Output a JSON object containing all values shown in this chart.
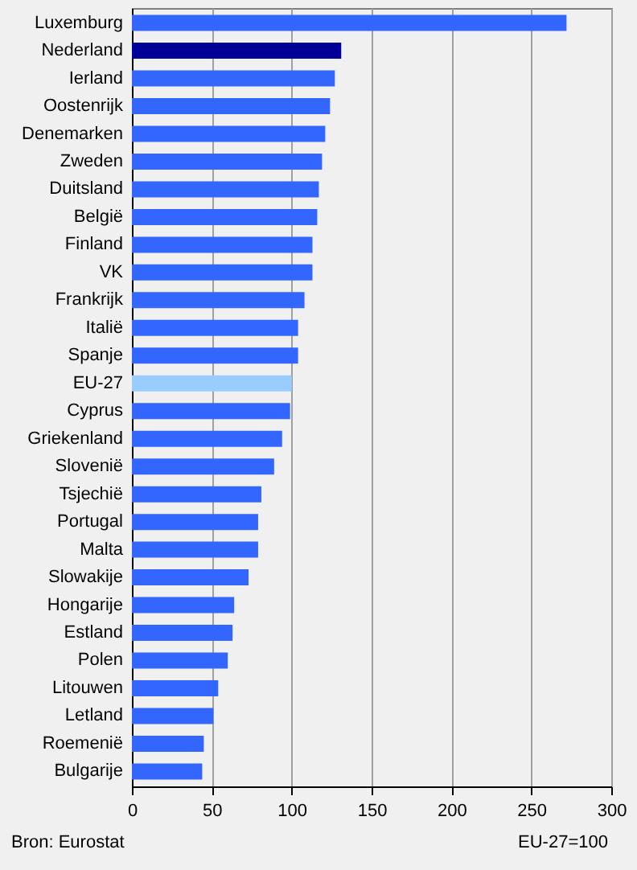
{
  "chart_data": {
    "type": "bar",
    "orientation": "horizontal",
    "categories": [
      "Luxemburg",
      "Nederland",
      "Ierland",
      "Oostenrijk",
      "Denemarken",
      "Zweden",
      "Duitsland",
      "België",
      "Finland",
      "VK",
      "Frankrijk",
      "Italië",
      "Spanje",
      "EU-27",
      "Cyprus",
      "Griekenland",
      "Slovenië",
      "Tsjechië",
      "Portugal",
      "Malta",
      "Slowakije",
      "Hongarije",
      "Estland",
      "Polen",
      "Litouwen",
      "Letland",
      "Roemenië",
      "Bulgarije"
    ],
    "values": [
      272,
      131,
      127,
      124,
      121,
      119,
      117,
      116,
      113,
      113,
      108,
      104,
      104,
      100,
      99,
      94,
      89,
      81,
      79,
      79,
      73,
      64,
      63,
      60,
      54,
      51,
      45,
      44
    ],
    "colors": [
      "#3366ff",
      "#000099",
      "#3366ff",
      "#3366ff",
      "#3366ff",
      "#3366ff",
      "#3366ff",
      "#3366ff",
      "#3366ff",
      "#3366ff",
      "#3366ff",
      "#3366ff",
      "#3366ff",
      "#99ccff",
      "#3366ff",
      "#3366ff",
      "#3366ff",
      "#3366ff",
      "#3366ff",
      "#3366ff",
      "#3366ff",
      "#3366ff",
      "#3366ff",
      "#3366ff",
      "#3366ff",
      "#3366ff",
      "#3366ff",
      "#3366ff"
    ],
    "xlim": [
      0,
      300
    ],
    "xticks": [
      0,
      50,
      100,
      150,
      200,
      250,
      300
    ],
    "grid": "x",
    "annotations": [
      "Bron: Eurostat",
      "EU-27=100"
    ]
  }
}
